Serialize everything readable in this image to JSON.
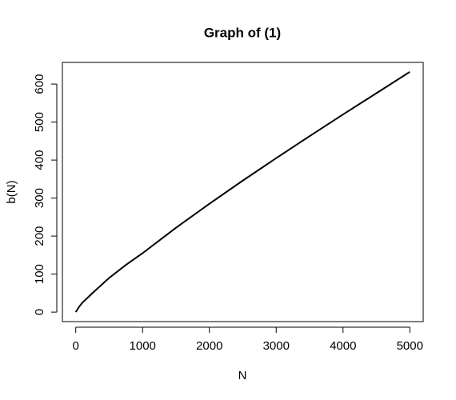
{
  "chart_data": {
    "type": "line",
    "title": "Graph of (1)",
    "x_label": "N",
    "y_label": "b(N)",
    "x": [
      0,
      50,
      100,
      250,
      500,
      750,
      1000,
      1500,
      2000,
      2500,
      3000,
      3500,
      4000,
      4500,
      5000
    ],
    "values": [
      0,
      14,
      25,
      50,
      90,
      124,
      155,
      222,
      285,
      346,
      405,
      463,
      520,
      576,
      632
    ],
    "color": "#000000",
    "xlim": [
      -200,
      5200
    ],
    "xticks": [
      0,
      1000,
      2000,
      3000,
      4000,
      5000
    ],
    "ylim": [
      -25,
      657
    ],
    "yticks": [
      0,
      100,
      200,
      300,
      400,
      500,
      600
    ]
  }
}
